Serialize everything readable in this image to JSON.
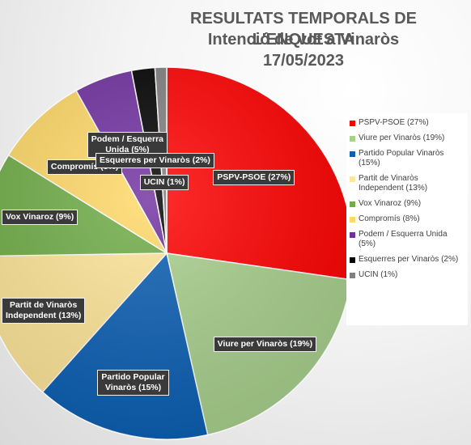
{
  "chart_data": {
    "type": "pie",
    "title": "RESULTATS TEMPORALS DE L'ENQUESTA",
    "subtitle": "Intenció de vot a Vinaròs",
    "date": "17/05/2023",
    "legend_position": "right",
    "slices": [
      {
        "name": "PSPV-PSOE",
        "value": 27,
        "legend": "PSPV-PSOE (27%)",
        "label": "PSPV-PSOE (27%)",
        "color": "#ff0000"
      },
      {
        "name": "Viure per Vinaròs",
        "value": 19,
        "legend": "Viure per Vinaròs (19%)",
        "label": "Viure per Vinaròs (19%)",
        "color": "#a9d18e"
      },
      {
        "name": "Partido Popular Vinaròs",
        "value": 15,
        "legend": "Partido Popular Vinaròs (15%)",
        "label": "Partido Popular\nVinaròs (15%)",
        "color": "#0b5fb4"
      },
      {
        "name": "Partit de Vinaròs Independent",
        "value": 13,
        "legend": "Partit de Vinaròs Independent (13%)",
        "label": "Partit de Vinaròs\nIndependent (13%)",
        "color": "#ffe699"
      },
      {
        "name": "Vox Vinaroz",
        "value": 9,
        "legend": "Vox Vinaroz (9%)",
        "label": "Vox Vinaroz (9%)",
        "color": "#70ad47"
      },
      {
        "name": "Compromís",
        "value": 8,
        "legend": "Compromís (8%)",
        "label": "Compromís (8%)",
        "color": "#ffd966"
      },
      {
        "name": "Podem / Esquerra Unida",
        "value": 5,
        "legend": "Podem / Esquerra Unida (5%)",
        "label": "Podem / Esquerra\nUnida (5%)",
        "color": "#7030a0"
      },
      {
        "name": "Esquerres per Vinaròs",
        "value": 2,
        "legend": "Esquerres per Vinaròs (2%)",
        "label": "Esquerres per Vinaròs (2%)",
        "color": "#000000"
      },
      {
        "name": "UCIN",
        "value": 1,
        "legend": "UCIN (1%)",
        "label": "UCIN (1%)",
        "color": "#7f7f7f"
      }
    ]
  }
}
